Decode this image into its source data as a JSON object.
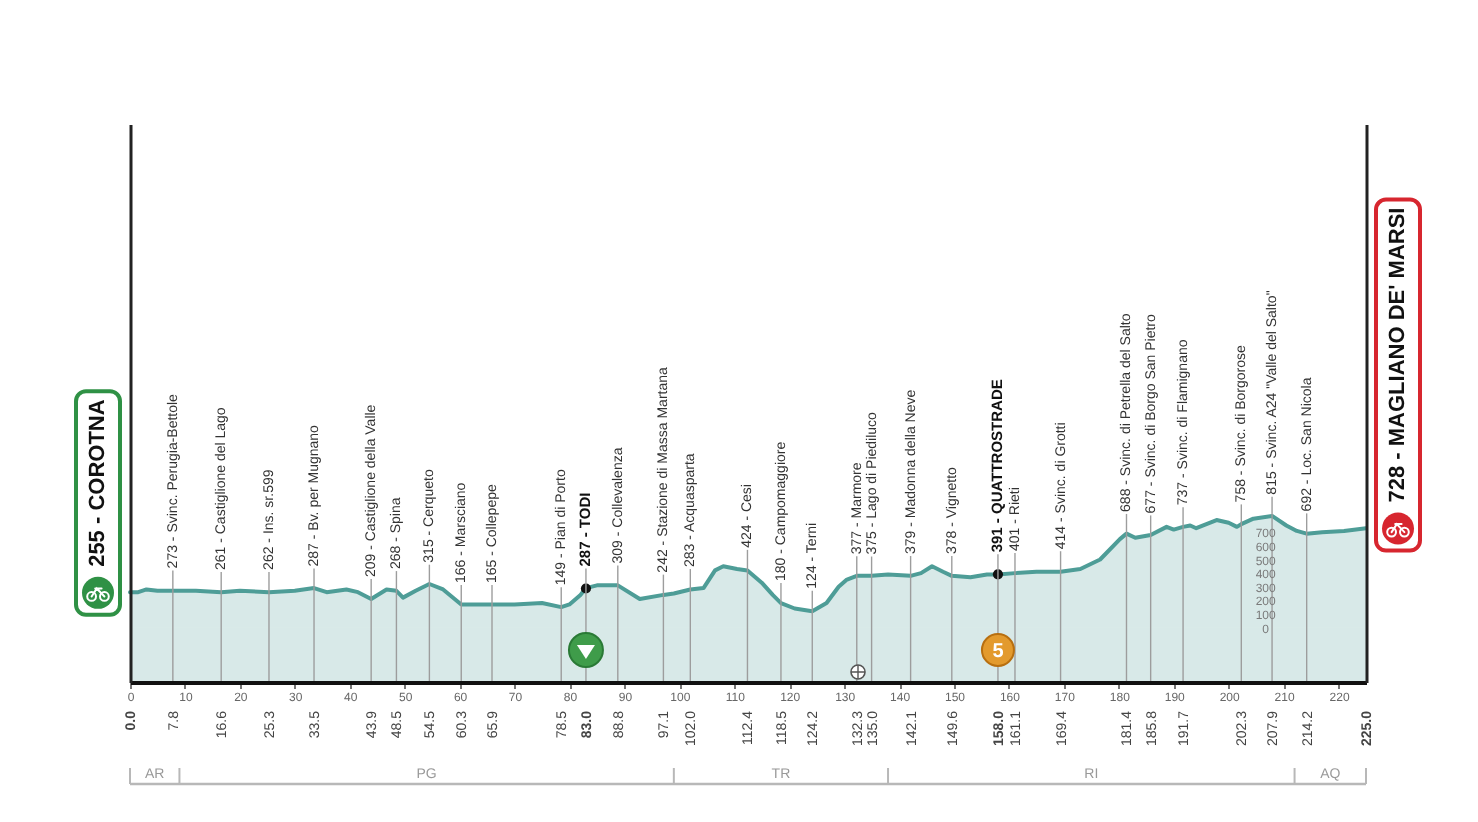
{
  "chart_data": {
    "type": "area",
    "xlim": [
      0,
      225
    ],
    "ylim": [
      -400,
      3700
    ],
    "xticks": [
      0,
      10,
      20,
      30,
      40,
      50,
      60,
      70,
      80,
      90,
      100,
      110,
      120,
      130,
      140,
      150,
      160,
      170,
      180,
      190,
      200,
      210,
      220
    ],
    "x2lim": [
      0,
      225
    ],
    "x2ticks": [
      {
        "value": 0,
        "label": "0.0"
      },
      7.8,
      16.6,
      25.3,
      33.5,
      43.9,
      48.5,
      54.5,
      60.3,
      65.9,
      78.5,
      {
        "value": 83,
        "label": "83.0"
      },
      88.8,
      97.1,
      {
        "value": 102,
        "label": "102.0"
      },
      112.4,
      118.5,
      124.2,
      132.3,
      {
        "value": 135,
        "label": "135.0"
      },
      142.1,
      149.6,
      {
        "value": 158,
        "label": "158.0"
      },
      161.1,
      169.4,
      181.4,
      185.8,
      191.7,
      202.3,
      207.9,
      214.2,
      {
        "value": 225,
        "label": "225.0"
      }
    ],
    "yticks": [
      0,
      100,
      200,
      300,
      400,
      500,
      600,
      700
    ],
    "series": [
      {
        "color": "#4e9d97",
        "x": [
          0,
          1.5,
          3,
          5,
          7.8,
          12,
          16.6,
          20,
          25.3,
          30,
          33.5,
          35.8,
          39.4,
          41.5,
          43.9,
          46.7,
          48.5,
          49.7,
          52,
          54.5,
          57,
          60.3,
          65.9,
          70,
          75,
          78.5,
          80,
          82,
          83,
          85,
          88.8,
          92.8,
          97.1,
          99,
          102,
          104.4,
          106.5,
          108,
          110.5,
          112.4,
          115,
          117,
          118.5,
          121,
          124.2,
          126.8,
          129,
          130.4,
          132.3,
          135,
          138,
          142.1,
          144,
          146,
          148,
          149.6,
          153,
          156,
          158,
          161.1,
          165,
          169.4,
          173,
          176.6,
          180.2,
          181.4,
          183,
          185.8,
          188.7,
          190,
          191.7,
          193,
          194.1,
          197.8,
          200,
          201.5,
          202.3,
          204.5,
          207.9,
          210.5,
          212.4,
          214.2,
          217,
          221,
          225
        ],
        "values": [
          260,
          260,
          280,
          270,
          270,
          270,
          260,
          270,
          260,
          270,
          290,
          260,
          280,
          260,
          210,
          280,
          270,
          220,
          270,
          320,
          280,
          170,
          170,
          170,
          180,
          150,
          170,
          240,
          290,
          310,
          310,
          210,
          240,
          250,
          280,
          290,
          420,
          450,
          430,
          420,
          330,
          240,
          180,
          140,
          120,
          180,
          300,
          350,
          380,
          380,
          390,
          380,
          400,
          450,
          410,
          380,
          370,
          390,
          390,
          400,
          410,
          410,
          430,
          500,
          650,
          690,
          660,
          680,
          740,
          720,
          740,
          750,
          730,
          790,
          770,
          740,
          760,
          800,
          820,
          750,
          710,
          690,
          700,
          710,
          730
        ]
      },
      {
        "type": "scatter",
        "color": "#111111",
        "marker": "circle",
        "x": [
          83,
          158
        ],
        "values": [
          287,
          391
        ]
      }
    ],
    "bands": [
      {
        "axis": "y",
        "from": -400,
        "to": 0,
        "color": "#4e9d97"
      }
    ],
    "annotations": [
      {
        "text": "255 - COROTNA",
        "x": 0,
        "y": 255
      },
      {
        "text": "273 - Svinc. Perugia-Bettole",
        "x": 7.8,
        "y": 273
      },
      {
        "text": "261 - Castiglione del Lago",
        "x": 16.6,
        "y": 261
      },
      {
        "text": "262 - Ins. sr.599",
        "x": 25.3,
        "y": 262
      },
      {
        "text": "287 - Bv. per Mugnano",
        "x": 33.5,
        "y": 287
      },
      {
        "text": "209 - Castiglione della Valle",
        "x": 43.9,
        "y": 209
      },
      {
        "text": "268 - Spina",
        "x": 48.5,
        "y": 268
      },
      {
        "text": "315 - Cerqueto",
        "x": 54.5,
        "y": 315
      },
      {
        "text": "166 - Marsciano",
        "x": 60.3,
        "y": 166
      },
      {
        "text": "165 - Collepepe",
        "x": 65.9,
        "y": 165
      },
      {
        "text": "149 - Pian di Porto",
        "x": 78.5,
        "y": 149
      },
      {
        "text": "287 - TODI",
        "x": 83,
        "y": 287
      },
      {
        "text": "309 - Collevalenza",
        "x": 88.8,
        "y": 309
      },
      {
        "text": "242 - Stazione di Massa Martana",
        "x": 97.1,
        "y": 242
      },
      {
        "text": "283 - Acquasparta",
        "x": 102,
        "y": 283
      },
      {
        "text": "424 - Cesi",
        "x": 112.4,
        "y": 424
      },
      {
        "text": "180 - Campomaggiore",
        "x": 118.5,
        "y": 180
      },
      {
        "text": "124 - Terni",
        "x": 124.2,
        "y": 124
      },
      {
        "text": "377 - Marmore",
        "x": 132.3,
        "y": 377
      },
      {
        "text": "375 - Lago di Piediluco",
        "x": 135,
        "y": 375
      },
      {
        "text": "379 - Madonna della Neve",
        "x": 142.1,
        "y": 379
      },
      {
        "text": "378 - Vignetto",
        "x": 149.6,
        "y": 378
      },
      {
        "text": "391 - QUATTROSTRADE",
        "x": 158,
        "y": 391
      },
      {
        "text": "401 - Rieti",
        "x": 161.1,
        "y": 401
      },
      {
        "text": "414 - Svinc. di Grotti",
        "x": 169.4,
        "y": 414
      },
      {
        "text": "688 - Svinc. di Petrella del Salto",
        "x": 181.4,
        "y": 688
      },
      {
        "text": "677 - Svinc. di Borgo San Pietro",
        "x": 185.8,
        "y": 677
      },
      {
        "text": "737 - Svinc. di Flamignano",
        "x": 191.7,
        "y": 737
      },
      {
        "text": "758 - Svinc. di Borgorose",
        "x": 202.3,
        "y": 758
      },
      {
        "text": "815 - Svinc. A24 \"Valle del Salto\"",
        "x": 207.9,
        "y": 815
      },
      {
        "text": "692 - Loc. San Nicola",
        "x": 214.2,
        "y": 692
      },
      {
        "text": "728 - MAGLIANO DE' MARSI",
        "x": 225,
        "y": 728
      },
      {
        "text": "5",
        "x": 158
      },
      "AR",
      "PG",
      "TR",
      "RI",
      "AQ"
    ]
  }
}
